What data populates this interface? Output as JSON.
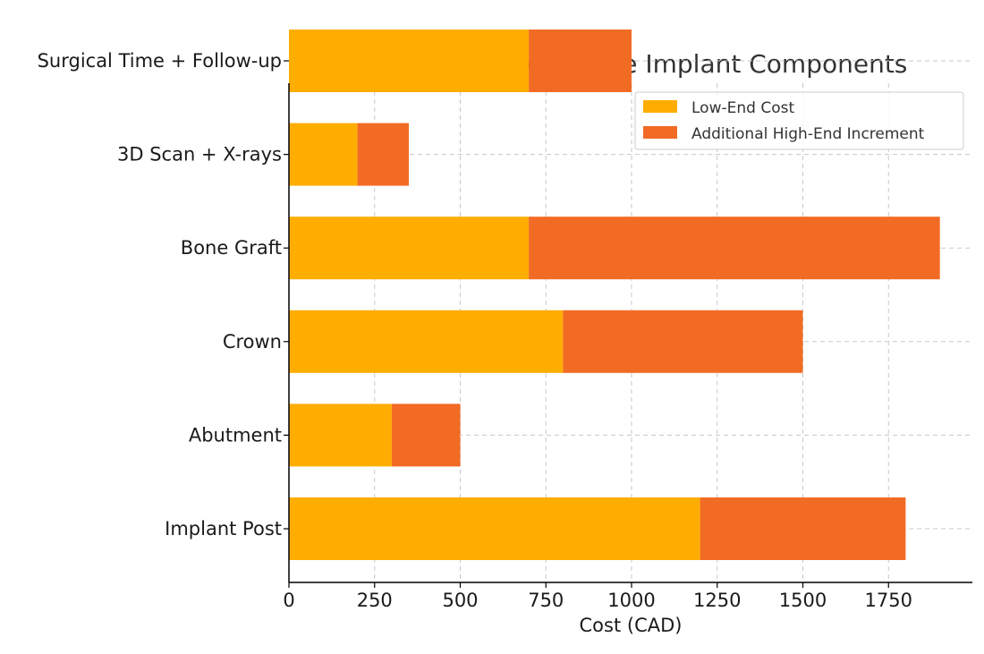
{
  "chart_data": {
    "type": "bar",
    "orientation": "horizontal",
    "stacked": true,
    "title": "Cost Ranges for Single Implant Components",
    "xlabel": "Cost (CAD)",
    "ylabel": "",
    "categories": [
      "Implant Post",
      "Abutment",
      "Crown",
      "Bone Graft",
      "3D Scan + X-rays",
      "Surgical Time + Follow-up"
    ],
    "series": [
      {
        "name": "Low-End Cost",
        "color": "#ffad00",
        "values": [
          1200,
          300,
          800,
          700,
          200,
          700
        ]
      },
      {
        "name": "Additional High-End Increment",
        "color": "#f26b24",
        "values": [
          600,
          200,
          700,
          1200,
          150,
          300
        ]
      }
    ],
    "xlim": [
      0,
      2000
    ],
    "xticks": [
      "0",
      "250",
      "500",
      "750",
      "1000",
      "1250",
      "1500",
      "1750"
    ],
    "grid": true,
    "legend_position": "top-right"
  }
}
